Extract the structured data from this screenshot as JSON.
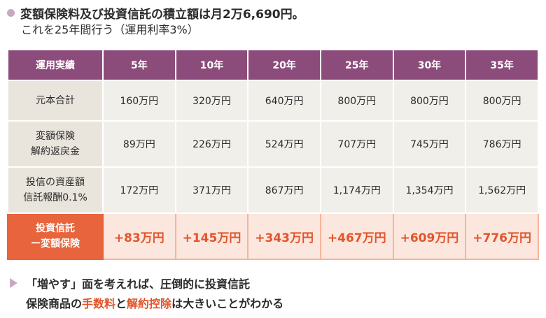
{
  "heading": {
    "line1": "変額保険料及び投資信託の積立額は月2万6,690円。",
    "line2": "これを25年間行う（運用利率3%）"
  },
  "table": {
    "header_label": "運用実績",
    "years": [
      "5年",
      "10年",
      "20年",
      "25年",
      "30年",
      "35年"
    ],
    "rows": [
      {
        "label_lines": [
          "元本合計"
        ],
        "values": [
          "160万円",
          "320万円",
          "640万円",
          "800万円",
          "800万円",
          "800万円"
        ]
      },
      {
        "label_lines": [
          "変額保険",
          "解約返戻金"
        ],
        "values": [
          "89万円",
          "226万円",
          "524万円",
          "707万円",
          "745万円",
          "786万円"
        ]
      },
      {
        "label_lines": [
          "投信の資産額",
          "信託報酬0.1%"
        ],
        "values": [
          "172万円",
          "371万円",
          "867万円",
          "1,174万円",
          "1,354万円",
          "1,562万円"
        ]
      }
    ],
    "diff_row": {
      "label_lines": [
        "投資信託",
        "ー変額保険"
      ],
      "values": [
        "+83万円",
        "+145万円",
        "+343万円",
        "+467万円",
        "+609万円",
        "+776万円"
      ]
    }
  },
  "footer": {
    "line1": "「増やす」面を考えれば、圧倒的に投資信託",
    "line2_parts": [
      "保険商品の",
      "手数料",
      "と",
      "解約控除",
      "は大きいことがわかる"
    ]
  },
  "colors": {
    "header_purple": "#8c4c7b",
    "accent_orange": "#e8643c",
    "highlight_text": "#e2542c",
    "bullet_lilac": "#c9a8c4"
  }
}
